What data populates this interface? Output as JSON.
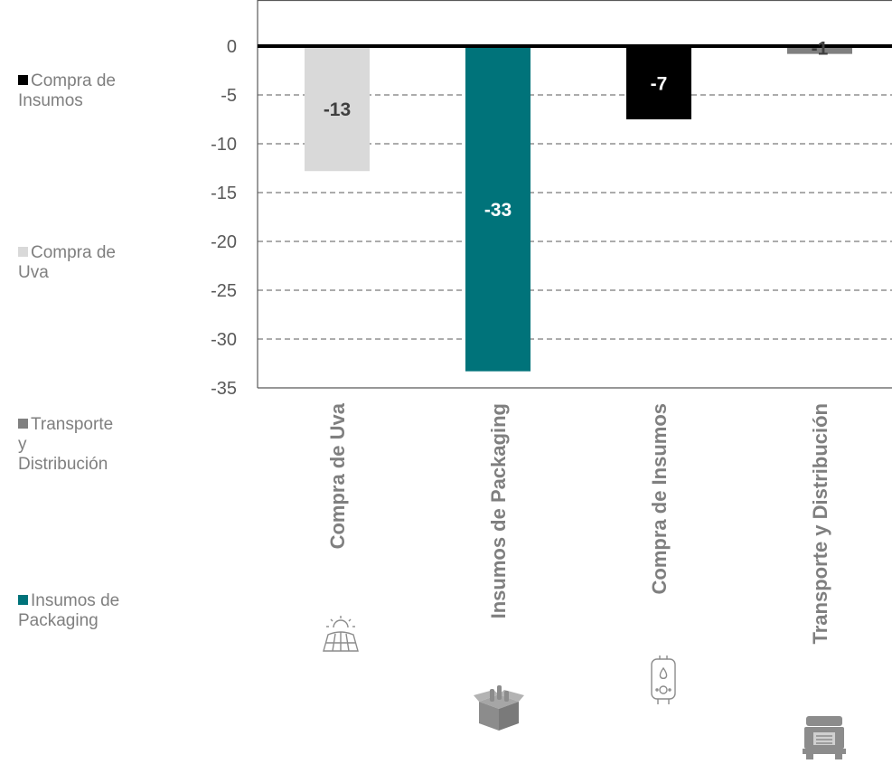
{
  "chart_data": {
    "type": "bar",
    "categories": [
      "Compra de Uva",
      "Insumos de Packaging",
      "Compra de Insumos",
      "Transporte y Distribución"
    ],
    "values": [
      -12.8,
      -33.3,
      -7.5,
      -0.8
    ],
    "data_labels": [
      "-13",
      "-33",
      "-7",
      "-1"
    ],
    "bar_colors": [
      "#d9d9d9",
      "#00737a",
      "#000000",
      "#808080"
    ],
    "label_colors": [
      "#404040",
      "#ffffff",
      "#ffffff",
      "#404040"
    ],
    "ylim": [
      -35,
      0
    ],
    "yticks": [
      0,
      -5,
      -10,
      -15,
      -20,
      -25,
      -30,
      -35
    ],
    "ytick_labels": [
      "0",
      "-5",
      "-10",
      "-15",
      "-20",
      "-25",
      "-30",
      "-35"
    ],
    "grid": "dashed horizontal",
    "legend_position": "left",
    "legend": [
      {
        "label": "Compra de\nInsumos",
        "color": "#000000"
      },
      {
        "label": "Compra de\nUva",
        "color": "#d9d9d9"
      },
      {
        "label": "Transporte\ny\nDistribución",
        "color": "#808080"
      },
      {
        "label": "Insumos de\nPackaging",
        "color": "#00737a"
      }
    ],
    "category_icons": [
      "sun-field-icon",
      "open-box-icon",
      "water-heater-icon",
      "truck-icon"
    ]
  },
  "colors": {
    "axis_text": "#595959",
    "category_text": "#7f7f7f",
    "grid": "#595959",
    "icon": "#8c8c8c"
  }
}
